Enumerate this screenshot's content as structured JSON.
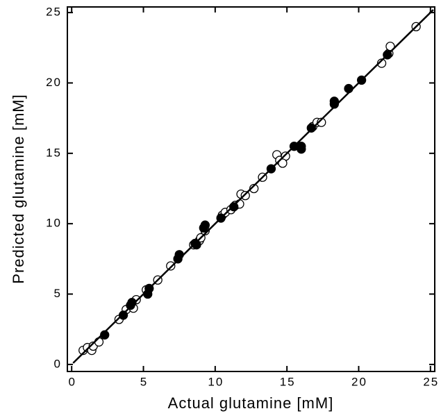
{
  "chart_data": {
    "type": "scatter",
    "xlabel": "Actual glutamine [mM]",
    "ylabel": "Predicted glutamine [mM]",
    "xlim": [
      -0.3,
      25.3
    ],
    "ylim": [
      -0.5,
      25.4
    ],
    "xticks": [
      0,
      5,
      10,
      15,
      20,
      25
    ],
    "yticks": [
      0,
      5,
      10,
      15,
      20,
      25
    ],
    "series": [
      {
        "marker": "open",
        "color": "#000000",
        "x": [
          0.8,
          1.1,
          1.4,
          1.5,
          1.9,
          3.3,
          3.8,
          4.3,
          4.5,
          5.2,
          6.0,
          6.9,
          8.5,
          8.9,
          9.0,
          9.3,
          10.5,
          10.7,
          11.1,
          11.4,
          11.7,
          11.8,
          12.1,
          12.7,
          13.3,
          14.3,
          14.5,
          14.9,
          14.7,
          16.8,
          17.1,
          17.4,
          21.6,
          22.1,
          22.2,
          24.0
        ],
        "values": [
          1.0,
          1.2,
          1.0,
          1.3,
          1.6,
          3.2,
          3.9,
          4.0,
          4.6,
          5.3,
          6.0,
          7.0,
          8.5,
          8.8,
          9.0,
          9.5,
          10.6,
          10.8,
          11.0,
          11.3,
          11.4,
          12.1,
          12.0,
          12.5,
          13.3,
          14.9,
          14.5,
          14.8,
          14.3,
          16.9,
          17.2,
          17.2,
          21.4,
          22.1,
          22.6,
          24.0
        ]
      },
      {
        "marker": "filled",
        "color": "#000000",
        "x": [
          2.3,
          3.6,
          4.1,
          4.2,
          5.3,
          5.4,
          7.4,
          7.5,
          8.6,
          8.7,
          9.2,
          9.3,
          10.4,
          11.3,
          13.9,
          15.5,
          16.0,
          16.0,
          16.7,
          18.3,
          18.3,
          19.3,
          20.2,
          22.0
        ],
        "values": [
          2.1,
          3.5,
          4.2,
          4.4,
          5.0,
          5.4,
          7.5,
          7.8,
          8.6,
          8.5,
          9.7,
          9.9,
          10.4,
          11.2,
          13.9,
          15.5,
          15.3,
          15.5,
          16.8,
          18.5,
          18.7,
          19.6,
          20.2,
          22.0
        ]
      },
      {
        "type": "line",
        "color": "#000000",
        "x": [
          0.1,
          25.2
        ],
        "values": [
          0.1,
          25.2
        ]
      }
    ]
  }
}
